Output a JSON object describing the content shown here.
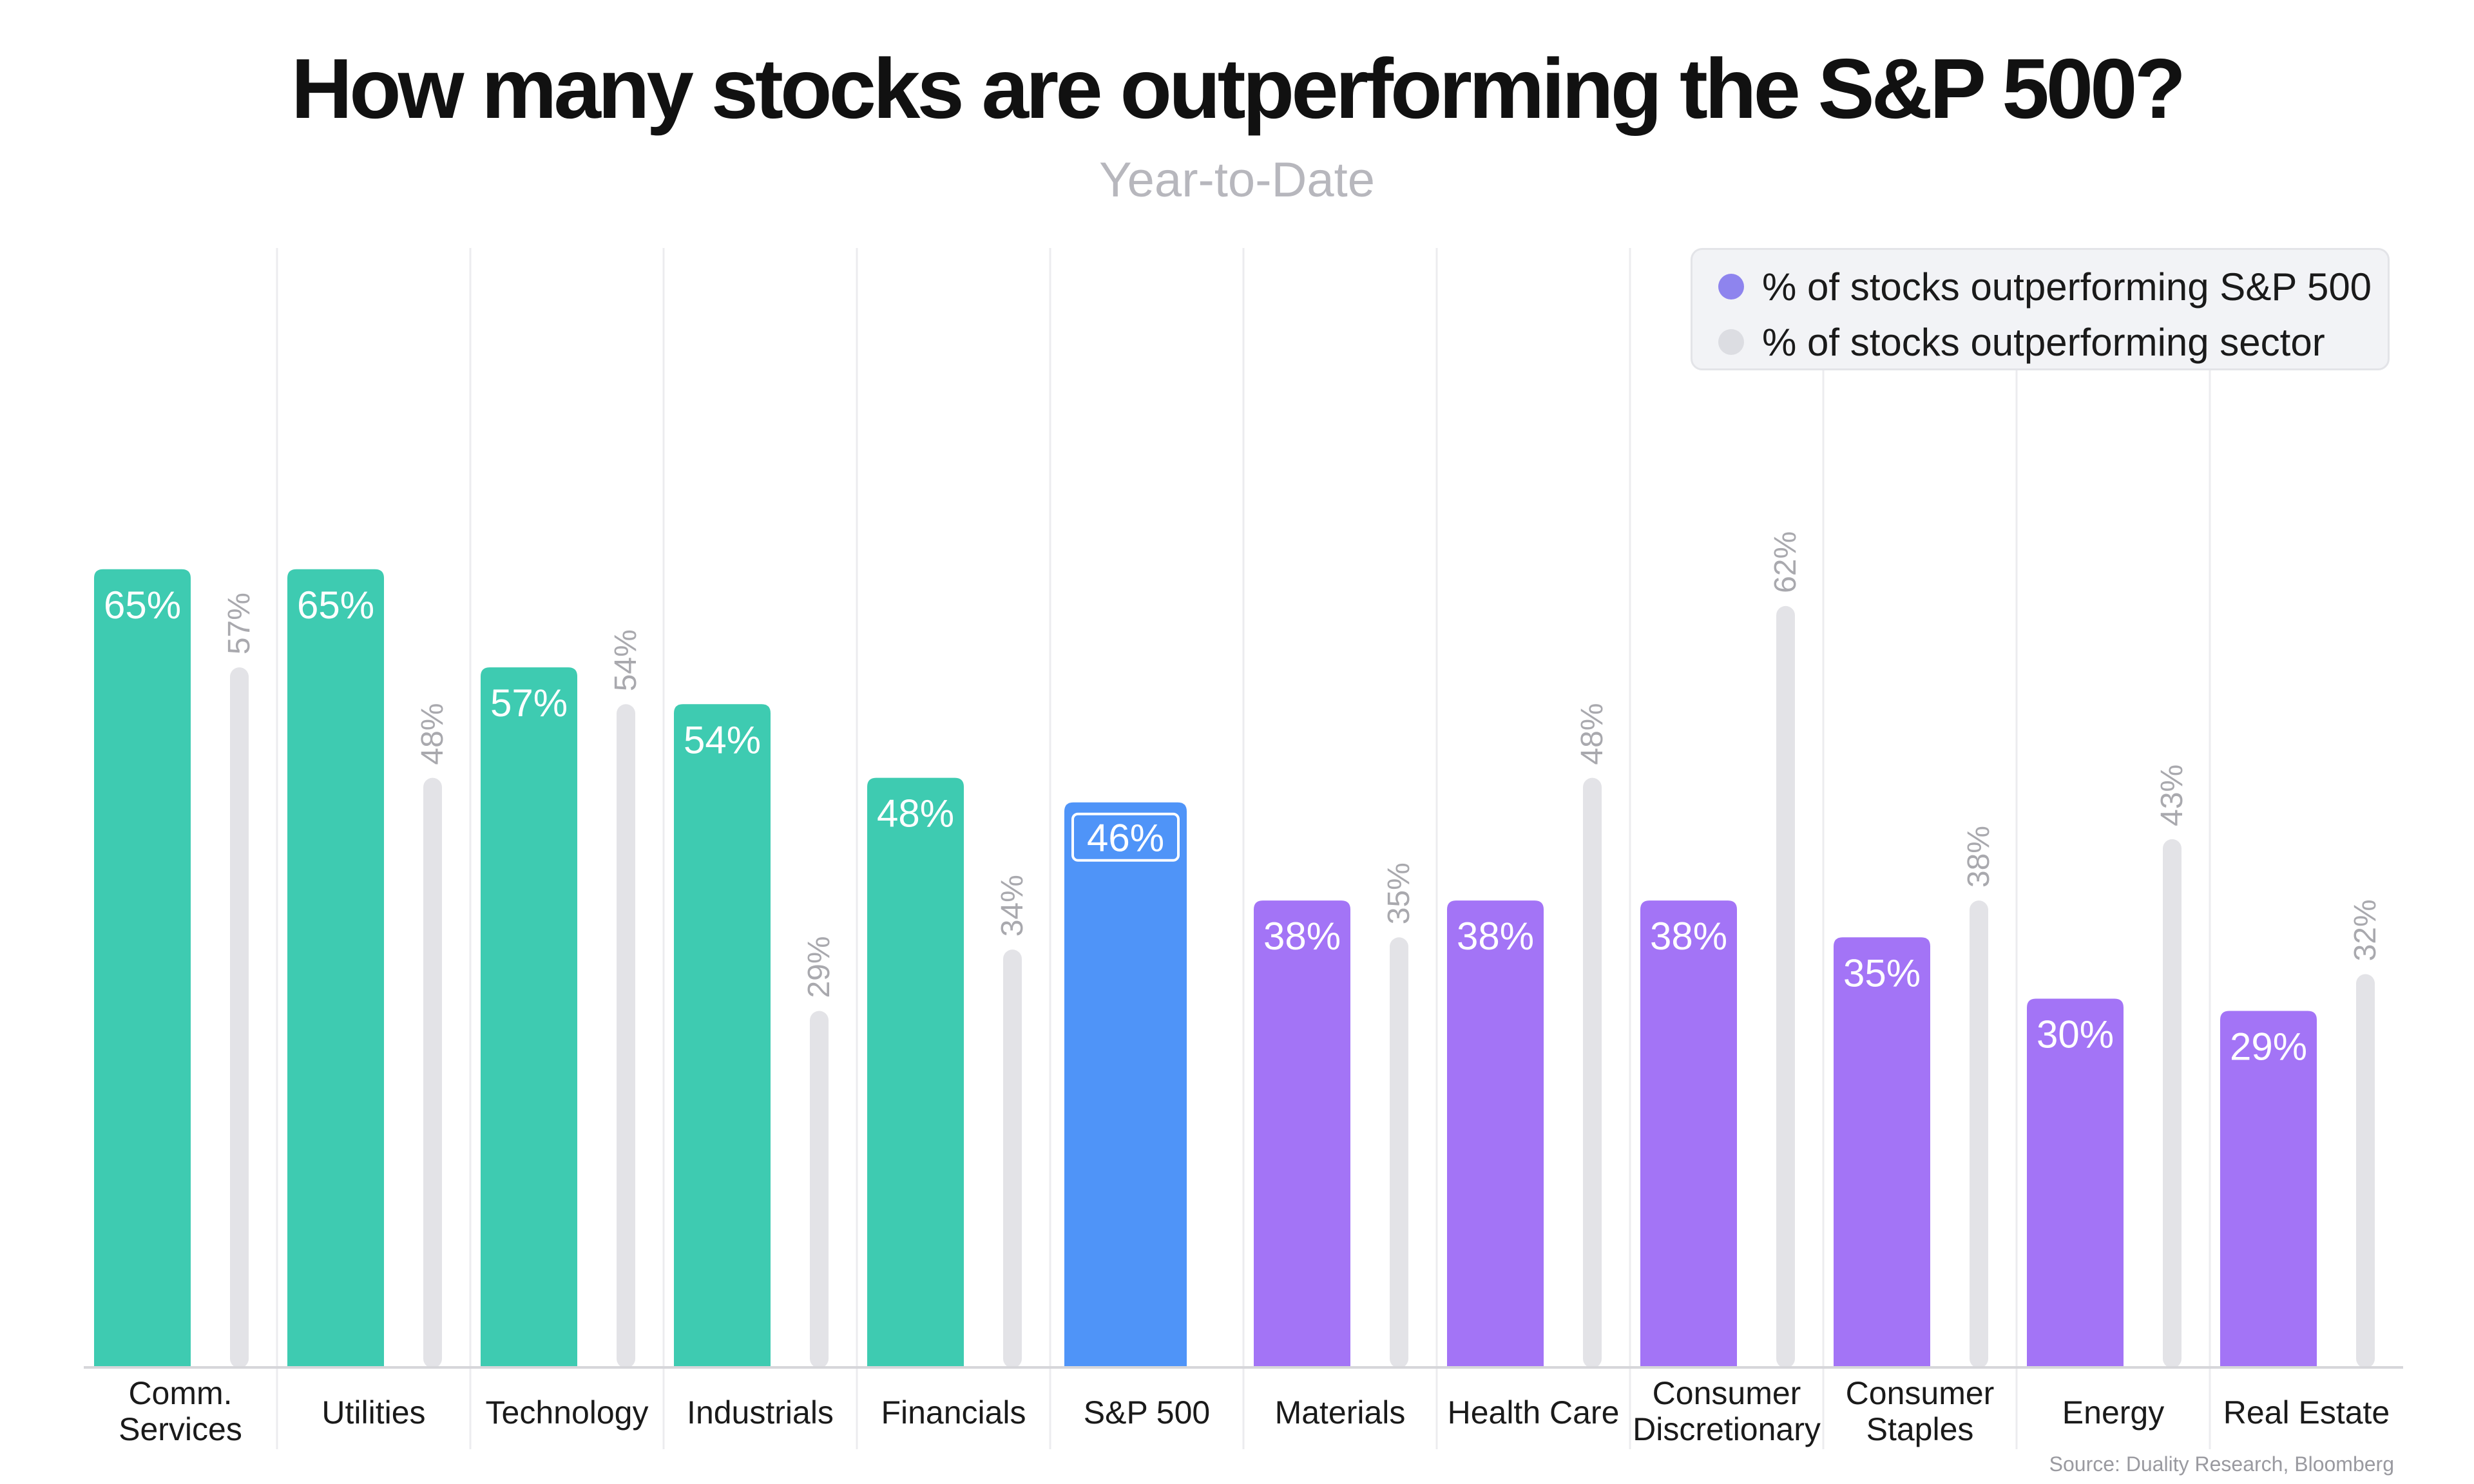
{
  "title": "How many stocks are outperforming the S&P 500?",
  "subtitle": "Year-to-Date",
  "source": "Source: Duality Research, Bloomberg",
  "colors": {
    "outperforming": "#3ecbb1",
    "underperforming": "#a374f6",
    "benchmark": "#4f94f8",
    "sector": "#e3e3e7",
    "sector_label": "#a9a9ae",
    "legend_dot_1": "#8e84ee",
    "legend_dot_2": "#dcdde2"
  },
  "legend": {
    "series_1": "% of stocks outperforming S&P 500",
    "series_2": "% of stocks outperforming sector",
    "placement": "top-right"
  },
  "chart_data": {
    "type": "bar",
    "title": "How many stocks are outperforming the S&P 500?",
    "subtitle": "Year-to-Date",
    "categories": [
      "Comm.\nServices",
      "Utilities",
      "Technology",
      "Industrials",
      "Financials",
      "S&P 500",
      "Materials",
      "Health Care",
      "Consumer\nDiscretionary",
      "Consumer\nStaples",
      "Energy",
      "Real Estate"
    ],
    "series": [
      {
        "name": "% of stocks outperforming S&P 500",
        "values": [
          65,
          65,
          57,
          54,
          48,
          46,
          38,
          38,
          38,
          35,
          30,
          29
        ],
        "labels": [
          "65%",
          "65%",
          "57%",
          "54%",
          "48%",
          "46%",
          "38%",
          "38%",
          "38%",
          "35%",
          "30%",
          "29%"
        ],
        "group": [
          "outperforming",
          "outperforming",
          "outperforming",
          "outperforming",
          "outperforming",
          "benchmark",
          "underperforming",
          "underperforming",
          "underperforming",
          "underperforming",
          "underperforming",
          "underperforming"
        ]
      },
      {
        "name": "% of stocks outperforming sector",
        "values": [
          57,
          48,
          54,
          29,
          34,
          null,
          35,
          48,
          62,
          38,
          43,
          32
        ],
        "labels": [
          "57%",
          "48%",
          "54%",
          "29%",
          "34%",
          "",
          "35%",
          "48%",
          "62%",
          "38%",
          "43%",
          "32%"
        ]
      }
    ],
    "ylim": [
      0,
      75
    ],
    "grid": "vertical separators",
    "legend": "top-right",
    "xlabel": "",
    "ylabel": ""
  }
}
